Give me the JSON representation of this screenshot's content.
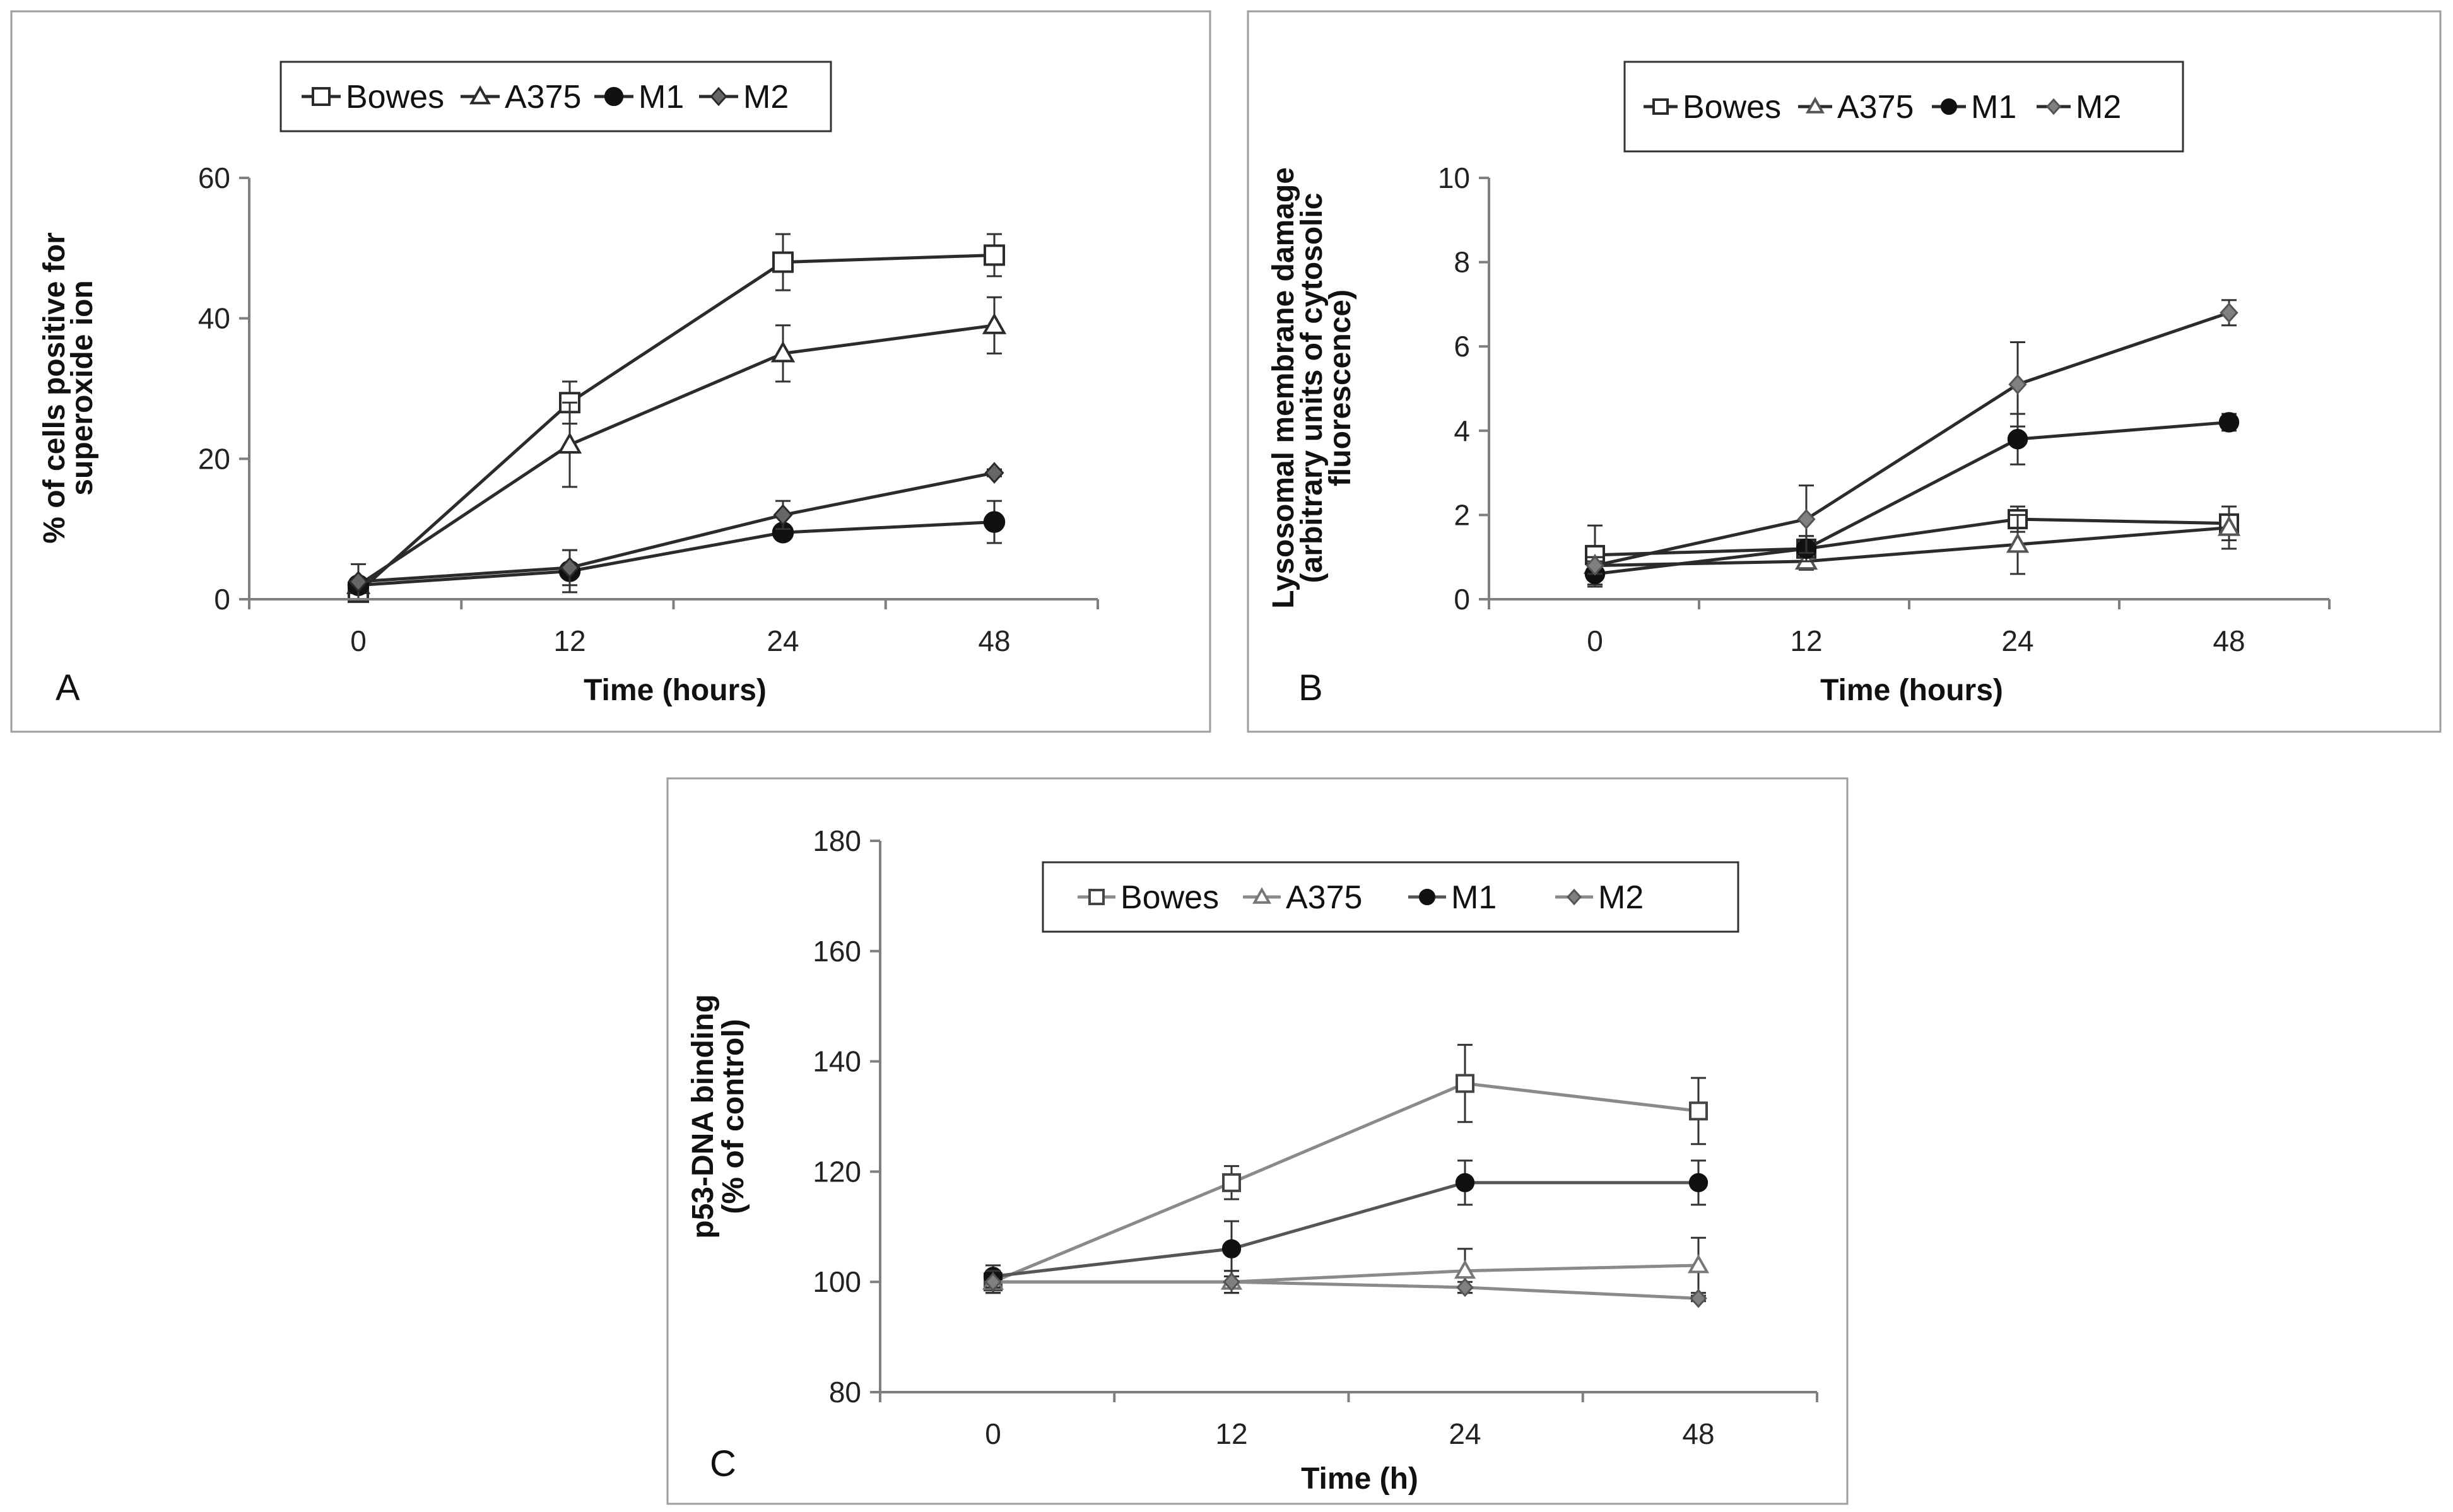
{
  "chart_data": [
    {
      "type": "line",
      "panel_label": "A",
      "categories": [
        "0",
        "12",
        "24",
        "48"
      ],
      "xlabel": "Time (hours)",
      "ylabel": [
        "% of cells positive for",
        "superoxide ion"
      ],
      "ylim": [
        0,
        60
      ],
      "yticks": [
        0,
        20,
        40,
        60
      ],
      "legend_position": "top",
      "series": [
        {
          "name": "Bowes",
          "marker": "square",
          "values": [
            1,
            28,
            48,
            49
          ],
          "errors": [
            1,
            3,
            4,
            3
          ],
          "line_color": "#2b2b2b",
          "fill": "#ffffff",
          "stroke": "#2b2b2b"
        },
        {
          "name": "A375",
          "marker": "triangle",
          "values": [
            2,
            22,
            35,
            39
          ],
          "errors": [
            1,
            6,
            4,
            4
          ],
          "line_color": "#2b2b2b",
          "fill": "#ffffff",
          "stroke": "#2b2b2b"
        },
        {
          "name": "M1",
          "marker": "circle",
          "values": [
            2,
            4,
            9.5,
            11
          ],
          "errors": [
            1,
            3,
            1,
            3
          ],
          "line_color": "#2b2b2b",
          "fill": "#111111",
          "stroke": "#111111"
        },
        {
          "name": "M2",
          "marker": "diamond",
          "values": [
            2.5,
            4.5,
            12,
            18
          ],
          "errors": [
            2.5,
            2.5,
            2,
            0.5
          ],
          "line_color": "#2b2b2b",
          "fill": "#666666",
          "stroke": "#2b2b2b"
        }
      ]
    },
    {
      "type": "line",
      "panel_label": "B",
      "categories": [
        "0",
        "12",
        "24",
        "48"
      ],
      "xlabel": "Time (hours)",
      "ylabel": [
        "Lysosomal membrane damage",
        "(arbitrary units of cytosolic",
        "fluorescence)"
      ],
      "ylim": [
        0,
        10
      ],
      "yticks": [
        0,
        2,
        4,
        6,
        8,
        10
      ],
      "legend_position": "top",
      "series": [
        {
          "name": "Bowes",
          "marker": "square",
          "values": [
            1.05,
            1.2,
            1.9,
            1.8
          ],
          "errors": [
            0.7,
            0.3,
            0.3,
            0.4
          ],
          "line_color": "#2b2b2b",
          "fill": "#ffffff",
          "stroke": "#2b2b2b"
        },
        {
          "name": "A375",
          "marker": "triangle",
          "values": [
            0.8,
            0.9,
            1.3,
            1.7
          ],
          "errors": [
            0.2,
            0.2,
            0.7,
            0.5
          ],
          "line_color": "#2b2b2b",
          "fill": "#ffffff",
          "stroke": "#555555"
        },
        {
          "name": "M1",
          "marker": "circle",
          "values": [
            0.6,
            1.2,
            3.8,
            4.2
          ],
          "errors": [
            0.3,
            0.3,
            0.6,
            0.2
          ],
          "line_color": "#2b2b2b",
          "fill": "#111111",
          "stroke": "#111111"
        },
        {
          "name": "M2",
          "marker": "diamond",
          "values": [
            0.8,
            1.9,
            5.1,
            6.8
          ],
          "errors": [
            0.2,
            0.8,
            1.0,
            0.3
          ],
          "line_color": "#2b2b2b",
          "fill": "#808080",
          "stroke": "#555555"
        }
      ]
    },
    {
      "type": "line",
      "panel_label": "C",
      "categories": [
        "0",
        "12",
        "24",
        "48"
      ],
      "xlabel": "Time (h)",
      "ylabel": [
        "p53-DNA binding",
        "(% of control)"
      ],
      "ylim": [
        80,
        180
      ],
      "yticks": [
        80,
        100,
        120,
        140,
        160,
        180
      ],
      "legend_position": "top",
      "series": [
        {
          "name": "Bowes",
          "marker": "square",
          "values": [
            100,
            118,
            136,
            131
          ],
          "errors": [
            2,
            3,
            7,
            6
          ],
          "line_color": "#8a8a8a",
          "fill": "#ffffff",
          "stroke": "#444444"
        },
        {
          "name": "A375",
          "marker": "triangle",
          "values": [
            100,
            100,
            102,
            103
          ],
          "errors": [
            2,
            2,
            4,
            5
          ],
          "line_color": "#8a8a8a",
          "fill": "#ffffff",
          "stroke": "#777777"
        },
        {
          "name": "M1",
          "marker": "circle",
          "values": [
            101,
            106,
            118,
            118
          ],
          "errors": [
            2,
            5,
            4,
            4
          ],
          "line_color": "#555555",
          "fill": "#111111",
          "stroke": "#111111"
        },
        {
          "name": "M2",
          "marker": "diamond",
          "values": [
            100,
            100,
            99,
            97
          ],
          "errors": [
            2,
            2,
            1,
            0.5
          ],
          "line_color": "#8a8a8a",
          "fill": "#808080",
          "stroke": "#555555"
        }
      ]
    }
  ]
}
